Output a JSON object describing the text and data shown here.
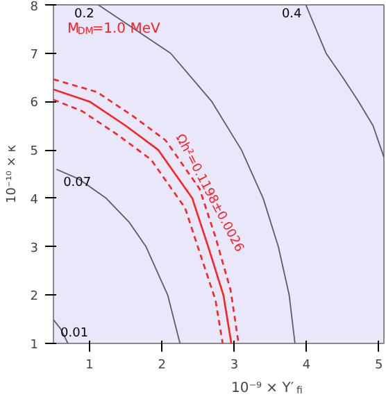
{
  "chart_data": {
    "type": "line",
    "xlabel": "10⁻⁹ × Y′$_{fi}$",
    "ylabel": "10⁻¹⁰ × κ",
    "xlim": [
      0.5,
      5.07
    ],
    "ylim": [
      1,
      8
    ],
    "xticks": [
      1,
      2,
      3,
      4,
      5
    ],
    "yticks": [
      1,
      2,
      3,
      4,
      5,
      6,
      7,
      8
    ],
    "grid": false,
    "marker": "none",
    "annotations": [
      "M$_{DM}$=1.0 MeV"
    ],
    "series": [
      {
        "name": "0.01",
        "color": "#5a5a70",
        "x": [
          0.5,
          0.6,
          0.7
        ],
        "values": [
          1.49,
          1.3,
          1.0
        ]
      },
      {
        "name": "0.07",
        "color": "#5a5a70",
        "x": [
          0.54,
          0.85,
          1.23,
          1.55,
          1.78,
          2.08,
          2.25
        ],
        "values": [
          4.6,
          4.4,
          4.0,
          3.5,
          3.0,
          2.0,
          1.0
        ]
      },
      {
        "name": "0.2",
        "color": "#5a5a70",
        "x": [
          1.12,
          2.12,
          2.69,
          3.1,
          3.4,
          3.61,
          3.76,
          3.84
        ],
        "values": [
          8,
          7,
          6,
          5,
          4,
          3,
          2,
          1
        ]
      },
      {
        "name": "0.4",
        "color": "#5a5a70",
        "x": [
          3.99,
          4.27,
          4.5,
          4.72,
          4.92,
          5.07
        ],
        "values": [
          8,
          7,
          6.5,
          6,
          5.5,
          4.85
        ]
      },
      {
        "name": "Ωh²=0.1198±0.0026",
        "color": "#ff2020",
        "line_style": "solid",
        "x": [
          0.5,
          1.0,
          1.5,
          1.95,
          2.42,
          2.64,
          2.85,
          2.96
        ],
        "values": [
          6.25,
          6,
          5.5,
          5,
          4,
          3,
          2,
          1
        ]
      },
      {
        "color": "#ff2020",
        "line_style": "dashed",
        "x": [
          0.5,
          1.1,
          1.6,
          2.05,
          2.52,
          2.74,
          2.95,
          3.06
        ],
        "values": [
          6.46,
          6.2,
          5.7,
          5.2,
          4.2,
          3.2,
          2.1,
          1
        ]
      },
      {
        "color": "#ff2020",
        "line_style": "dashed",
        "x": [
          0.5,
          0.9,
          1.4,
          1.85,
          2.32,
          2.54,
          2.74,
          2.84
        ],
        "values": [
          6.04,
          5.8,
          5.3,
          4.8,
          3.8,
          2.8,
          1.9,
          1
        ]
      }
    ]
  }
}
